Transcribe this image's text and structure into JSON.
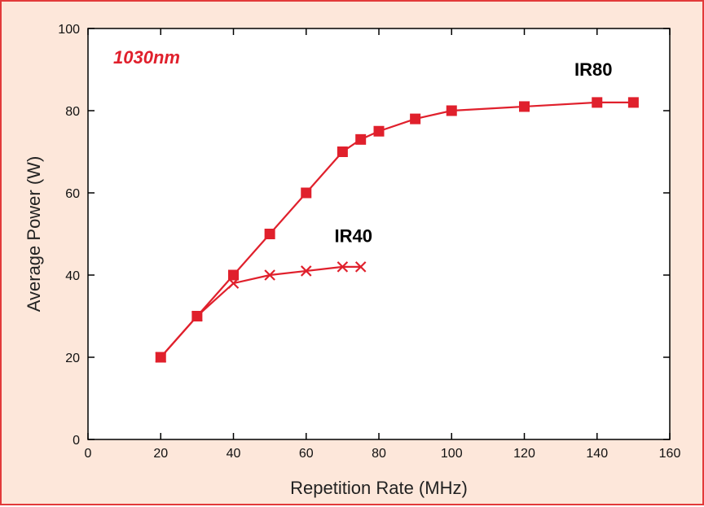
{
  "chart_data": {
    "type": "line",
    "annotation": "1030nm",
    "xlabel": "Repetition Rate (MHz)",
    "ylabel": "Average Power (W)",
    "xlim": [
      0,
      160
    ],
    "ylim": [
      0,
      100
    ],
    "xticks": [
      0,
      20,
      40,
      60,
      80,
      100,
      120,
      140,
      160
    ],
    "yticks": [
      0,
      20,
      40,
      60,
      80,
      100
    ],
    "grid": false,
    "series": [
      {
        "name": "IR80",
        "marker": "square",
        "color": "#e0202c",
        "x": [
          20,
          30,
          40,
          50,
          60,
          70,
          75,
          80,
          90,
          100,
          120,
          140,
          150
        ],
        "y": [
          20,
          30,
          40,
          50,
          60,
          70,
          73,
          75,
          78,
          80,
          81,
          82,
          82
        ]
      },
      {
        "name": "IR40",
        "marker": "x",
        "color": "#e0202c",
        "x": [
          20,
          30,
          40,
          50,
          60,
          70,
          75
        ],
        "y": [
          20,
          30,
          38,
          40,
          41,
          42,
          42
        ]
      }
    ]
  }
}
